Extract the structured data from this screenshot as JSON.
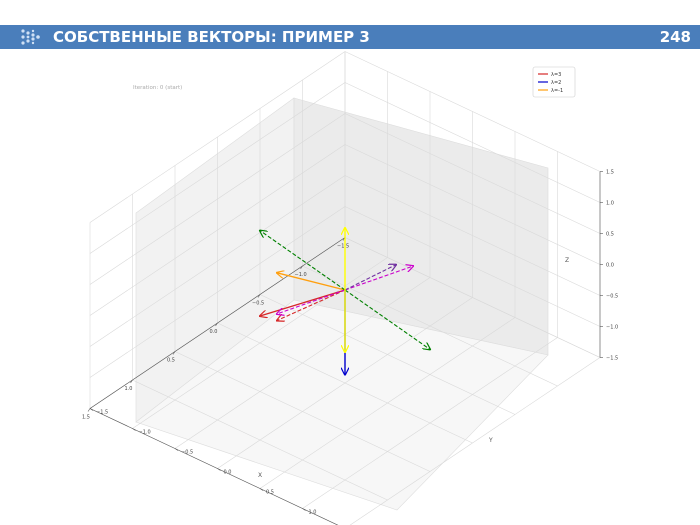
{
  "slide": {
    "title": "СОБСТВЕННЫЕ ВЕКТОРЫ: ПРИМЕР 3",
    "page_number": "248",
    "header_color": "#4a7ebb",
    "logo_icon": "dots-chevron-icon"
  },
  "chart_data": {
    "type": "3d-quiver",
    "annotation": "Iteration: 0 (start)",
    "xlabel": "X",
    "ylabel": "Y",
    "zlabel": "Z",
    "xlim": [
      -1.5,
      1.5
    ],
    "ylim": [
      -1.5,
      1.5
    ],
    "zlim": [
      -1.5,
      1.5
    ],
    "x_ticks": [
      "−1.5",
      "−1.0",
      "−0.5",
      "0.0",
      "0.5",
      "1.0",
      "1.5"
    ],
    "y_ticks": [
      "−1.5",
      "−1.0",
      "−0.5",
      "0.0",
      "0.5",
      "1.0",
      "1.5"
    ],
    "z_ticks": [
      "1.5",
      "1.0",
      "0.5",
      "0.0",
      "−0.5",
      "−1.0",
      "−1.5"
    ],
    "grid": true,
    "legend_position": "top-right",
    "legend": [
      {
        "label": "λ=3",
        "color": "#d62728"
      },
      {
        "label": "λ=2",
        "color": "#0000cc"
      },
      {
        "label": "λ=-1",
        "color": "#ff9f0f"
      }
    ],
    "vectors": [
      {
        "name": "λ=3 eigenvector",
        "color": "#d62728",
        "style": "solid",
        "start": [
          0,
          0,
          0
        ],
        "end": [
          1.0,
          0.0,
          0.5
        ]
      },
      {
        "name": "λ=2 eigenvector",
        "color": "#0000cc",
        "style": "solid",
        "start": [
          0,
          0,
          0
        ],
        "end": [
          1.0,
          1.0,
          0.2
        ]
      },
      {
        "name": "λ=-1 eigenvector",
        "color": "#ff9f0f",
        "style": "solid",
        "start": [
          0,
          0,
          0
        ],
        "end": [
          0.6,
          -0.2,
          0.7
        ]
      },
      {
        "name": "dashed red",
        "color": "#d62728",
        "style": "dashed",
        "start": [
          0,
          0,
          0
        ],
        "end": [
          0.9,
          0.1,
          0.4
        ]
      },
      {
        "name": "dashed magenta",
        "color": "#cc00cc",
        "style": "dashed",
        "start": [
          0,
          0,
          0
        ],
        "end": [
          0.8,
          0.0,
          0.35
        ]
      },
      {
        "name": "dashed magenta opposite",
        "color": "#cc00cc",
        "style": "dashed",
        "start": [
          0,
          0,
          0
        ],
        "end": [
          -0.8,
          0.0,
          -0.35
        ]
      },
      {
        "name": "dashed purple",
        "color": "#7030a0",
        "style": "dashed",
        "start": [
          0,
          0,
          0
        ],
        "end": [
          -0.7,
          -0.1,
          -0.3
        ]
      },
      {
        "name": "dashed green",
        "color": "#008000",
        "style": "dashed",
        "start": [
          0,
          0,
          0
        ],
        "end": [
          -0.2,
          -1.2,
          0.0
        ]
      },
      {
        "name": "dashed green opposite",
        "color": "#008000",
        "style": "dashed",
        "start": [
          0,
          0,
          0
        ],
        "end": [
          0.2,
          1.2,
          0.0
        ]
      },
      {
        "name": "yellow up",
        "color": "#ffff00",
        "style": "solid",
        "start": [
          0,
          0,
          0
        ],
        "end": [
          0.0,
          0.0,
          1.0
        ]
      },
      {
        "name": "yellow down",
        "color": "#ffff00",
        "style": "solid",
        "start": [
          0,
          0,
          0
        ],
        "end": [
          0.0,
          0.0,
          -1.0
        ]
      }
    ]
  }
}
